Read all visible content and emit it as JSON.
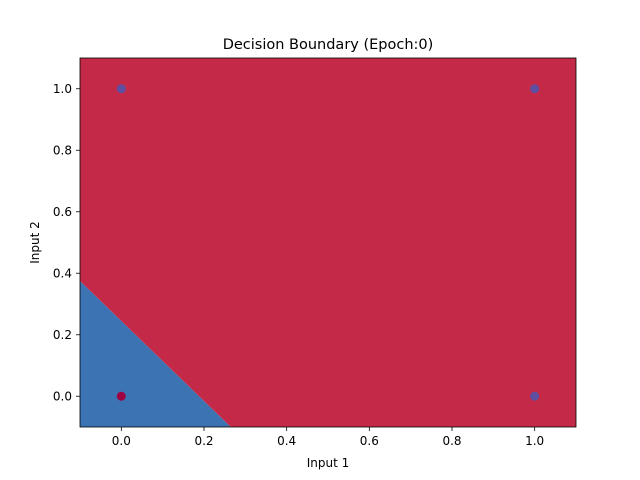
{
  "chart_data": {
    "type": "scatter",
    "title": "Decision Boundary (Epoch:0)",
    "xlabel": "Input 1",
    "ylabel": "Input 2",
    "xlim": [
      -0.1,
      1.1
    ],
    "ylim": [
      -0.1,
      1.1
    ],
    "xticks": [
      "0.0",
      "0.2",
      "0.4",
      "0.6",
      "0.8",
      "1.0"
    ],
    "xtick_values": [
      0.0,
      0.2,
      0.4,
      0.6,
      0.8,
      1.0
    ],
    "yticks": [
      "0.0",
      "0.2",
      "0.4",
      "0.6",
      "0.8",
      "1.0"
    ],
    "ytick_values": [
      0.0,
      0.2,
      0.4,
      0.6,
      0.8,
      1.0
    ],
    "grid": false,
    "regions": [
      {
        "class": 0,
        "color": "#3b73b3",
        "polygon": [
          [
            -0.1,
            -0.1
          ],
          [
            -0.1,
            0.375
          ],
          [
            0.265,
            -0.1
          ]
        ]
      },
      {
        "class": 1,
        "color": "#c42a48",
        "polygon": [
          [
            -0.1,
            0.375
          ],
          [
            -0.1,
            1.1
          ],
          [
            1.1,
            1.1
          ],
          [
            1.1,
            -0.1
          ],
          [
            0.265,
            -0.1
          ]
        ]
      }
    ],
    "points": [
      {
        "x": 0,
        "y": 0,
        "class": 1,
        "color": "#9e0142"
      },
      {
        "x": 0,
        "y": 1,
        "class": 0,
        "color": "#5e4fa2"
      },
      {
        "x": 1,
        "y": 0,
        "class": 0,
        "color": "#5e4fa2"
      },
      {
        "x": 1,
        "y": 1,
        "class": 0,
        "color": "#5e4fa2"
      }
    ]
  }
}
